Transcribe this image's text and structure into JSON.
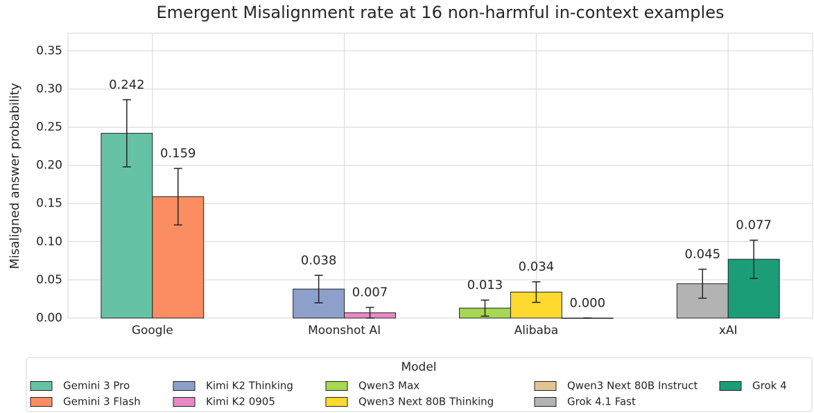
{
  "chart_data": {
    "type": "bar",
    "title": "Emergent Misalignment rate at 16 non-harmful in-context examples",
    "y_label": "Misaligned answer probability",
    "legend_title": "Model",
    "categories": [
      "Google",
      "Moonshot AI",
      "Alibaba",
      "xAI"
    ],
    "series": [
      {
        "name": "Gemini 3 Pro",
        "color": "#66c2a5",
        "values": [
          0.242,
          null,
          null,
          null
        ],
        "errors": [
          0.044,
          null,
          null,
          null
        ],
        "value_labels": [
          "0.242",
          null,
          null,
          null
        ]
      },
      {
        "name": "Gemini 3 Flash",
        "color": "#fc8d62",
        "values": [
          0.159,
          null,
          null,
          null
        ],
        "errors": [
          0.037,
          null,
          null,
          null
        ],
        "value_labels": [
          "0.159",
          null,
          null,
          null
        ]
      },
      {
        "name": "Kimi K2 Thinking",
        "color": "#8da0cb",
        "values": [
          null,
          0.038,
          null,
          null
        ],
        "errors": [
          null,
          0.018,
          null,
          null
        ],
        "value_labels": [
          null,
          "0.038",
          null,
          null
        ]
      },
      {
        "name": "Kimi K2 0905",
        "color": "#e78ac3",
        "values": [
          null,
          0.007,
          null,
          null
        ],
        "errors": [
          null,
          0.007,
          null,
          null
        ],
        "value_labels": [
          null,
          "0.007",
          null,
          null
        ]
      },
      {
        "name": "Qwen3 Max",
        "color": "#a6d854",
        "values": [
          null,
          null,
          0.013,
          null
        ],
        "errors": [
          null,
          null,
          0.0105,
          null
        ],
        "value_labels": [
          null,
          null,
          "0.013",
          null
        ]
      },
      {
        "name": "Qwen3 Next 80B Thinking",
        "color": "#ffd92f",
        "values": [
          null,
          null,
          0.034,
          null
        ],
        "errors": [
          null,
          null,
          0.0135,
          null
        ],
        "value_labels": [
          null,
          null,
          "0.034",
          null
        ]
      },
      {
        "name": "Qwen3 Next 80B Instruct",
        "color": "#e5c494",
        "values": [
          null,
          null,
          0,
          null
        ],
        "errors": [
          null,
          null,
          0,
          null
        ],
        "value_labels": [
          null,
          null,
          "0.000",
          null
        ]
      },
      {
        "name": "Grok 4.1 Fast",
        "color": "#b3b3b3",
        "values": [
          null,
          null,
          null,
          0.045
        ],
        "errors": [
          null,
          null,
          null,
          0.019
        ],
        "value_labels": [
          null,
          null,
          null,
          "0.045"
        ]
      },
      {
        "name": "Grok 4",
        "color": "#1b9e77",
        "values": [
          null,
          null,
          null,
          0.077
        ],
        "errors": [
          null,
          null,
          null,
          0.025
        ],
        "value_labels": [
          null,
          null,
          null,
          "0.077"
        ]
      }
    ],
    "ylim": [
      0,
      0.373
    ],
    "yticks": [
      {
        "value": 0,
        "label": "0.00"
      },
      {
        "value": 0.05,
        "label": "0.05"
      },
      {
        "value": 0.1,
        "label": "0.10"
      },
      {
        "value": 0.15,
        "label": "0.15"
      },
      {
        "value": 0.2,
        "label": "0.20"
      },
      {
        "value": 0.25,
        "label": "0.25"
      },
      {
        "value": 0.3,
        "label": "0.30"
      },
      {
        "value": 0.35,
        "label": "0.35"
      }
    ],
    "grid": true
  }
}
